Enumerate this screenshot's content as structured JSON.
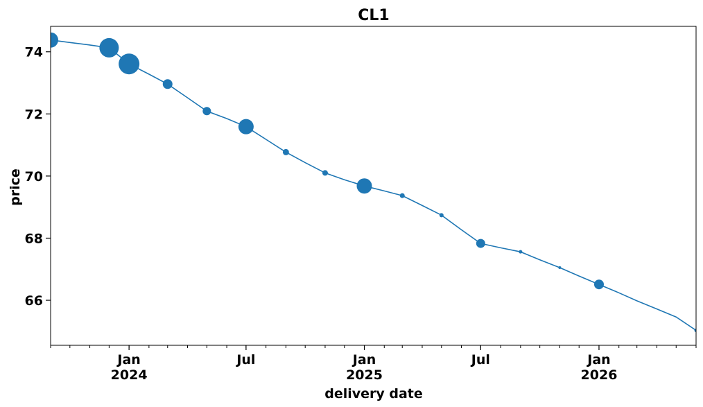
{
  "chart_data": {
    "type": "line",
    "title": "CL1",
    "xlabel": "delivery date",
    "ylabel": "price",
    "ylim": [
      64.55,
      74.82
    ],
    "xlim": [
      "2023-09-01",
      "2026-06-01"
    ],
    "grid": false,
    "legend": "none",
    "line_color": "#1f77b4",
    "y_ticks": [
      66,
      68,
      70,
      72,
      74
    ],
    "x_major_ticks": [
      {
        "date": "2024-01-01",
        "label": "Jan",
        "year": "2024"
      },
      {
        "date": "2024-07-01",
        "label": "Jul",
        "year": ""
      },
      {
        "date": "2025-01-01",
        "label": "Jan",
        "year": "2025"
      },
      {
        "date": "2025-07-01",
        "label": "Jul",
        "year": ""
      },
      {
        "date": "2026-01-01",
        "label": "Jan",
        "year": "2026"
      }
    ],
    "series": [
      {
        "x": [
          "2023-09-01",
          "2023-10-01",
          "2023-11-01",
          "2023-12-01",
          "2024-01-01",
          "2024-02-01",
          "2024-03-01",
          "2024-04-01",
          "2024-05-01",
          "2024-06-01",
          "2024-07-01",
          "2024-08-01",
          "2024-09-01",
          "2024-10-01",
          "2024-11-01",
          "2024-12-01",
          "2025-01-01",
          "2025-02-01",
          "2025-03-01",
          "2025-04-01",
          "2025-05-01",
          "2025-06-01",
          "2025-07-01",
          "2025-08-01",
          "2025-09-01",
          "2025-10-01",
          "2025-11-01",
          "2025-12-01",
          "2026-01-01",
          "2026-02-01",
          "2026-03-01",
          "2026-04-01",
          "2026-05-01",
          "2026-06-01"
        ],
        "y": [
          74.38,
          74.3,
          74.22,
          74.13,
          73.61,
          73.28,
          72.96,
          72.52,
          72.09,
          71.85,
          71.59,
          71.18,
          70.77,
          70.43,
          70.1,
          69.88,
          69.68,
          69.52,
          69.37,
          69.05,
          68.74,
          68.27,
          67.83,
          67.69,
          67.56,
          67.3,
          67.05,
          66.78,
          66.51,
          66.24,
          65.98,
          65.72,
          65.46,
          65.03
        ],
        "marker_size": [
          22,
          0,
          0,
          28,
          30,
          0,
          14,
          0,
          12,
          0,
          22,
          0,
          9,
          0,
          8,
          0,
          22,
          0,
          7,
          0,
          6,
          0,
          13,
          0,
          5,
          0,
          4,
          0,
          14,
          0,
          0,
          0,
          0,
          5
        ]
      }
    ]
  }
}
